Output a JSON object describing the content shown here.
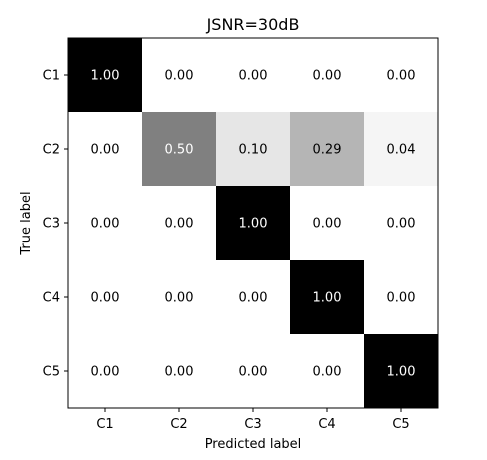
{
  "chart_data": {
    "type": "heatmap",
    "title": "JSNR=30dB",
    "xlabel": "Predicted label",
    "ylabel": "True label",
    "x_categories": [
      "C1",
      "C2",
      "C3",
      "C4",
      "C5"
    ],
    "y_categories": [
      "C1",
      "C2",
      "C3",
      "C4",
      "C5"
    ],
    "values": [
      [
        1.0,
        0.0,
        0.0,
        0.0,
        0.0
      ],
      [
        0.0,
        0.5,
        0.1,
        0.29,
        0.04
      ],
      [
        0.0,
        0.0,
        1.0,
        0.0,
        0.0
      ],
      [
        0.0,
        0.0,
        0.0,
        1.0,
        0.0
      ],
      [
        0.0,
        0.0,
        0.0,
        0.0,
        1.0
      ]
    ],
    "value_range": [
      0,
      1
    ],
    "colormap": "Greys",
    "colors": {
      "low": "#ffffff",
      "high": "#000000",
      "text_dark": "#000000",
      "text_light": "#ffffff"
    },
    "value_format": "0.00"
  }
}
